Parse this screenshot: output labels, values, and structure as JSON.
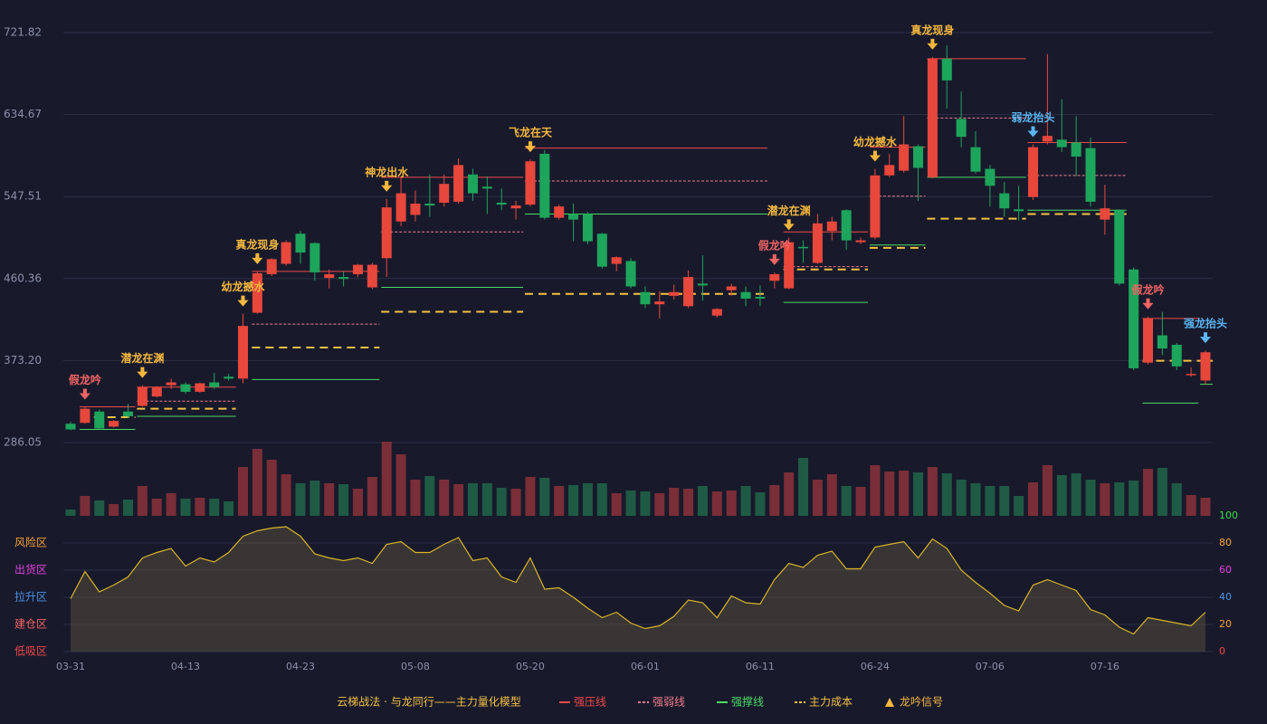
{
  "chart_data": [
    {
      "type": "candlestick",
      "categories": [
        "03-31",
        null,
        null,
        null,
        null,
        null,
        null,
        null,
        "04-13",
        null,
        null,
        null,
        null,
        null,
        null,
        null,
        "04-23",
        null,
        null,
        null,
        null,
        null,
        null,
        null,
        "05-08",
        null,
        null,
        null,
        null,
        null,
        null,
        null,
        "05-20",
        null,
        null,
        null,
        null,
        null,
        null,
        null,
        "06-01",
        null,
        null,
        null,
        null,
        null,
        null,
        null,
        "06-11",
        null,
        null,
        null,
        null,
        null,
        null,
        null,
        "06-24",
        null,
        null,
        null,
        null,
        null,
        null,
        null,
        "07-06",
        null,
        null,
        null,
        null,
        null,
        null,
        null,
        "07-16",
        null,
        null,
        null,
        null,
        null,
        null,
        null
      ],
      "open": [
        306,
        307,
        319,
        303,
        319,
        325,
        335,
        347,
        348,
        340,
        350,
        356,
        354,
        424,
        465,
        476,
        508,
        498,
        461,
        462,
        465,
        451,
        482,
        521,
        528,
        540,
        541,
        542,
        571,
        558,
        541,
        535,
        539,
        593,
        525,
        529,
        529,
        508,
        476,
        479,
        446,
        433,
        442,
        431,
        455,
        421,
        448,
        446,
        441,
        458,
        450,
        494,
        477,
        511,
        533,
        499,
        504,
        570,
        575,
        601,
        568,
        694,
        630,
        600,
        577,
        551,
        534,
        547,
        606,
        608,
        605,
        599,
        523,
        533,
        470,
        371,
        400,
        390,
        358,
        352
      ],
      "high": [
        308,
        324,
        321,
        310,
        327,
        347,
        346,
        354,
        350,
        350,
        360,
        359,
        423,
        468,
        482,
        501,
        511,
        499,
        470,
        468,
        476,
        477,
        545,
        568,
        554,
        571,
        571,
        588,
        577,
        569,
        556,
        543,
        587,
        597,
        539,
        540,
        531,
        509,
        484,
        482,
        452,
        447,
        454,
        469,
        485,
        429,
        455,
        452,
        453,
        467,
        504,
        501,
        529,
        526,
        534,
        504,
        577,
        593,
        633,
        603,
        696,
        708,
        659,
        617,
        581,
        563,
        559,
        603,
        699,
        651,
        633,
        610,
        560,
        534,
        472,
        420,
        425,
        392,
        366,
        384
      ],
      "low": [
        299,
        306,
        300,
        302,
        312,
        324,
        334,
        343,
        338,
        339,
        343,
        352,
        349,
        423,
        463,
        474,
        476,
        458,
        450,
        452,
        462,
        449,
        462,
        516,
        521,
        526,
        537,
        540,
        543,
        529,
        533,
        523,
        537,
        523,
        523,
        500,
        497,
        471,
        468,
        450,
        429,
        418,
        438,
        429,
        437,
        419,
        442,
        431,
        431,
        450,
        449,
        477,
        476,
        501,
        491,
        497,
        502,
        568,
        573,
        543,
        567,
        641,
        600,
        572,
        537,
        526,
        522,
        544,
        603,
        595,
        569,
        537,
        507,
        453,
        363,
        369,
        379,
        363,
        356,
        348
      ],
      "close": [
        300,
        322,
        301,
        309,
        314,
        345,
        345,
        350,
        340,
        349,
        345,
        354,
        410,
        466,
        481,
        499,
        488,
        467,
        465,
        460,
        475,
        475,
        536,
        551,
        540,
        538,
        561,
        581,
        551,
        556,
        539,
        538,
        585,
        525,
        537,
        523,
        500,
        473,
        483,
        452,
        433,
        436,
        446,
        462,
        453,
        428,
        452,
        439,
        439,
        465,
        499,
        493,
        519,
        521,
        501,
        501,
        570,
        581,
        603,
        578,
        694,
        671,
        611,
        574,
        559,
        535,
        532,
        600,
        612,
        600,
        590,
        542,
        535,
        455,
        365,
        418,
        386,
        367,
        359,
        382
      ],
      "up_color": "#e8473c",
      "down_color": "#1ea55c",
      "ylim": [
        286.05,
        721.82
      ],
      "yticks": [
        286.05,
        {
          "value": 373.2,
          "label": "373.20"
        },
        460.36,
        547.51,
        634.67,
        721.82
      ],
      "grid": true,
      "levels": [
        {
          "name": "强压线",
          "color": "#f04848",
          "style": "solid"
        },
        {
          "name": "强弱线",
          "color": "#f27d8c",
          "style": "dotted"
        },
        {
          "name": "强撑线",
          "color": "#4cd964",
          "style": "solid"
        },
        {
          "name": "主力成本",
          "color": "#f5c242",
          "style": "dashed"
        }
      ],
      "segments": [
        {
          "level": 0,
          "from": 1,
          "to": 4,
          "value": 324
        },
        {
          "level": 3,
          "from": 2,
          "to": 4,
          "value": 313
        },
        {
          "level": 2,
          "from": 1,
          "to": 4,
          "value": 300
        },
        {
          "level": 0,
          "from": 5,
          "to": 11,
          "value": 345
        },
        {
          "level": 1,
          "from": 5,
          "to": 11,
          "value": 330
        },
        {
          "level": 3,
          "from": 5,
          "to": 11,
          "value": 322
        },
        {
          "level": 2,
          "from": 5,
          "to": 11,
          "value": 314
        },
        {
          "level": 0,
          "from": 13,
          "to": 21,
          "value": 468
        },
        {
          "level": 1,
          "from": 13,
          "to": 21,
          "value": 412
        },
        {
          "level": 3,
          "from": 13,
          "to": 21,
          "value": 387
        },
        {
          "level": 2,
          "from": 13,
          "to": 21,
          "value": 353
        },
        {
          "level": 0,
          "from": 22,
          "to": 31,
          "value": 568
        },
        {
          "level": 1,
          "from": 22,
          "to": 31,
          "value": 510
        },
        {
          "level": 2,
          "from": 22,
          "to": 31,
          "value": 451
        },
        {
          "level": 3,
          "from": 22,
          "to": 31,
          "value": 425
        },
        {
          "level": 0,
          "from": 32,
          "to": 48,
          "value": 599
        },
        {
          "level": 1,
          "from": 32,
          "to": 48,
          "value": 564
        },
        {
          "level": 2,
          "from": 32,
          "to": 48,
          "value": 529
        },
        {
          "level": 3,
          "from": 32,
          "to": 48,
          "value": 444
        },
        {
          "level": 0,
          "from": 50,
          "to": 55,
          "value": 510
        },
        {
          "level": 1,
          "from": 50,
          "to": 55,
          "value": 473
        },
        {
          "level": 3,
          "from": 50,
          "to": 55,
          "value": 470
        },
        {
          "level": 2,
          "from": 50,
          "to": 55,
          "value": 435
        },
        {
          "level": 0,
          "from": 56,
          "to": 59,
          "value": 600
        },
        {
          "level": 1,
          "from": 56,
          "to": 59,
          "value": 548
        },
        {
          "level": 2,
          "from": 56,
          "to": 59,
          "value": 496
        },
        {
          "level": 3,
          "from": 56,
          "to": 59,
          "value": 493
        },
        {
          "level": 0,
          "from": 60,
          "to": 66,
          "value": 694
        },
        {
          "level": 1,
          "from": 60,
          "to": 66,
          "value": 631
        },
        {
          "level": 2,
          "from": 60,
          "to": 66,
          "value": 568
        },
        {
          "level": 3,
          "from": 60,
          "to": 66,
          "value": 524
        },
        {
          "level": 0,
          "from": 67,
          "to": 73,
          "value": 605
        },
        {
          "level": 1,
          "from": 67,
          "to": 73,
          "value": 570
        },
        {
          "level": 2,
          "from": 67,
          "to": 73,
          "value": 533
        },
        {
          "level": 3,
          "from": 67,
          "to": 73,
          "value": 529
        },
        {
          "level": 0,
          "from": 75,
          "to": 78,
          "value": 418
        },
        {
          "level": 3,
          "from": 75,
          "to": 79,
          "value": 373
        },
        {
          "level": 2,
          "from": 75,
          "to": 78,
          "value": 328
        },
        {
          "level": 2,
          "from": 79,
          "to": 79,
          "value": 348
        }
      ],
      "signals": [
        {
          "label": "假龙吟",
          "index": 1,
          "color": "#f06464"
        },
        {
          "label": "潜龙在渊",
          "index": 5,
          "color": "#f5b83d"
        },
        {
          "label": "幼龙撼水",
          "index": 12,
          "color": "#f5b83d"
        },
        {
          "label": "真龙现身",
          "index": 13,
          "color": "#f5b83d"
        },
        {
          "label": "神龙出水",
          "index": 22,
          "color": "#f5b83d"
        },
        {
          "label": "飞龙在天",
          "index": 32,
          "color": "#f5b83d"
        },
        {
          "label": "假龙吟",
          "index": 49,
          "color": "#f06464"
        },
        {
          "label": "潜龙在渊",
          "index": 50,
          "color": "#f5b83d"
        },
        {
          "label": "幼龙撼水",
          "index": 56,
          "color": "#f5b83d"
        },
        {
          "label": "真龙现身",
          "index": 60,
          "color": "#f5b83d"
        },
        {
          "label": "弱龙抬头",
          "index": 67,
          "color": "#5ab4f0"
        },
        {
          "label": "假龙吟",
          "index": 75,
          "color": "#f06464"
        },
        {
          "label": "强龙抬头",
          "index": 79,
          "color": "#5ab4f0"
        }
      ],
      "legend_title": "云梯战法 · 与龙同行——主力量化模型",
      "signal_legend": "龙吟信号",
      "signal_legend_color": "#f5b83d"
    },
    {
      "type": "bar",
      "values": [
        7,
        22,
        17,
        13,
        18,
        33,
        19,
        25,
        19,
        20,
        19,
        16,
        54,
        74,
        62,
        46,
        36,
        39,
        36,
        35,
        30,
        43,
        82,
        68,
        40,
        44,
        40,
        35,
        36,
        36,
        31,
        30,
        43,
        42,
        33,
        34,
        36,
        36,
        25,
        28,
        27,
        25,
        31,
        30,
        33,
        27,
        28,
        33,
        26,
        34,
        48,
        64,
        40,
        46,
        33,
        32,
        56,
        49,
        50,
        48,
        54,
        47,
        40,
        36,
        33,
        33,
        22,
        37,
        56,
        45,
        47,
        40,
        36,
        37,
        39,
        52,
        53,
        36,
        23,
        20
      ],
      "up_color": "#7a2e37",
      "down_color": "#1f5a45"
    },
    {
      "type": "area",
      "values": [
        39,
        59,
        44,
        49,
        55,
        69,
        73,
        76,
        63,
        69,
        66,
        73,
        85,
        89,
        91,
        92,
        85,
        72,
        69,
        67,
        69,
        65,
        79,
        81,
        73,
        73,
        79,
        84,
        67,
        69,
        55,
        51,
        69,
        46,
        47,
        40,
        32,
        25,
        29,
        21,
        17,
        19,
        26,
        38,
        36,
        25,
        41,
        36,
        35,
        53,
        65,
        62,
        71,
        74,
        61,
        61,
        77,
        79,
        81,
        69,
        83,
        76,
        60,
        51,
        43,
        34,
        30,
        49,
        53,
        49,
        45,
        31,
        27,
        18,
        13,
        25,
        23,
        21,
        19,
        29
      ],
      "color": "#d9b524",
      "ylim": [
        0,
        100
      ],
      "yticks": [
        0,
        20,
        40,
        60,
        80,
        100
      ],
      "ytick_colors": [
        "#f04848",
        "#f5a030",
        "#4a90e2",
        "#e040e0",
        "#f5a030",
        "#3ddc4a"
      ],
      "zones": [
        {
          "value": 80,
          "label": "风险区",
          "color": "#f5a030"
        },
        {
          "value": 60,
          "label": "出货区",
          "color": "#e040e0"
        },
        {
          "value": 40,
          "label": "拉升区",
          "color": "#4a90e2"
        },
        {
          "value": 20,
          "label": "建仓区",
          "color": "#f06464"
        },
        {
          "value": 0,
          "label": "低吸区",
          "color": "#f04848"
        }
      ]
    }
  ]
}
